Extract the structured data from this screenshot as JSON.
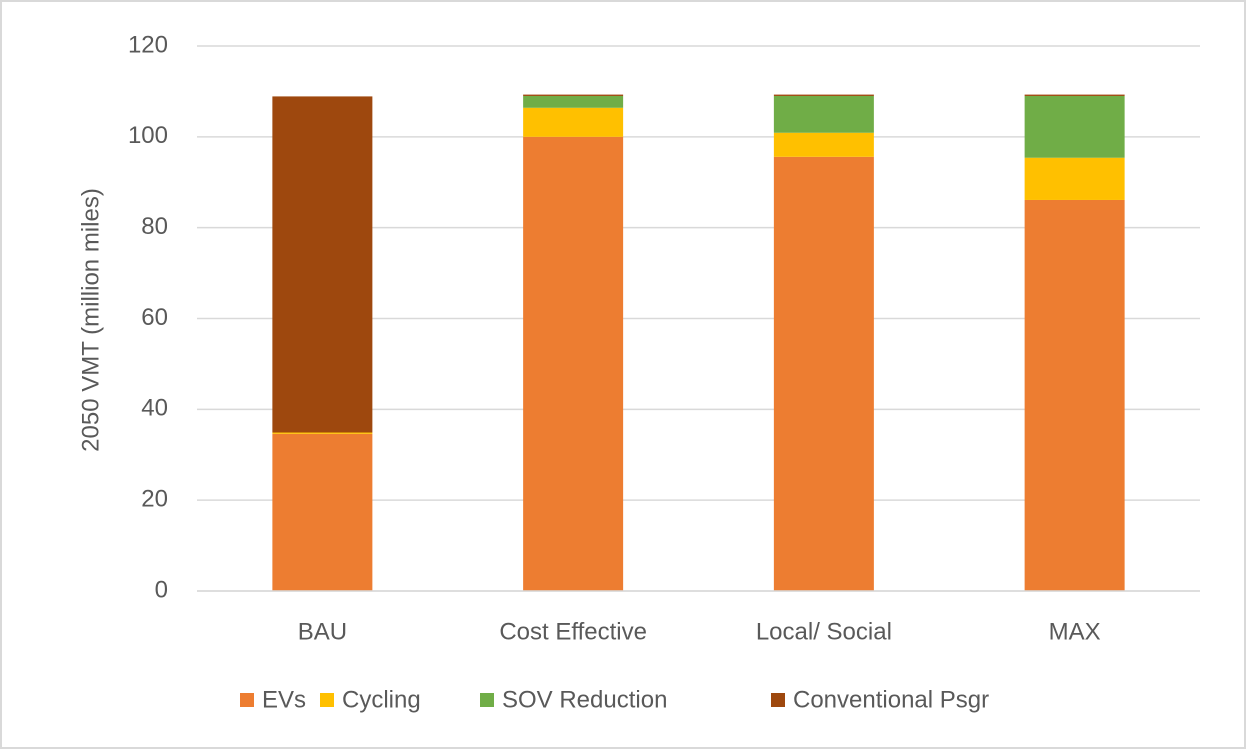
{
  "chart_data": {
    "type": "stacked_bar",
    "y_label": "2050 VMT (million miles)",
    "categories": [
      "BAU",
      "Cost Effective",
      "Local/ Social",
      "MAX"
    ],
    "series": [
      {
        "name": "EVs",
        "color": "#ed7d31",
        "values": [
          34.6,
          100,
          95.6,
          86.1
        ]
      },
      {
        "name": "Cycling",
        "color": "#ffc000",
        "values": [
          0.3,
          6.4,
          5.3,
          9.3
        ]
      },
      {
        "name": "SOV Reduction",
        "color": "#70ad47",
        "values": [
          0,
          2.6,
          8.1,
          13.6
        ]
      },
      {
        "name": "Conventional Psgr",
        "color": "#9e480e",
        "values": [
          74,
          0.3,
          0.3,
          0.3
        ]
      }
    ],
    "ylim": [
      0,
      120
    ],
    "yticks": [
      0,
      20,
      40,
      60,
      80,
      100,
      120
    ],
    "grid": true,
    "legend": "bottom"
  }
}
